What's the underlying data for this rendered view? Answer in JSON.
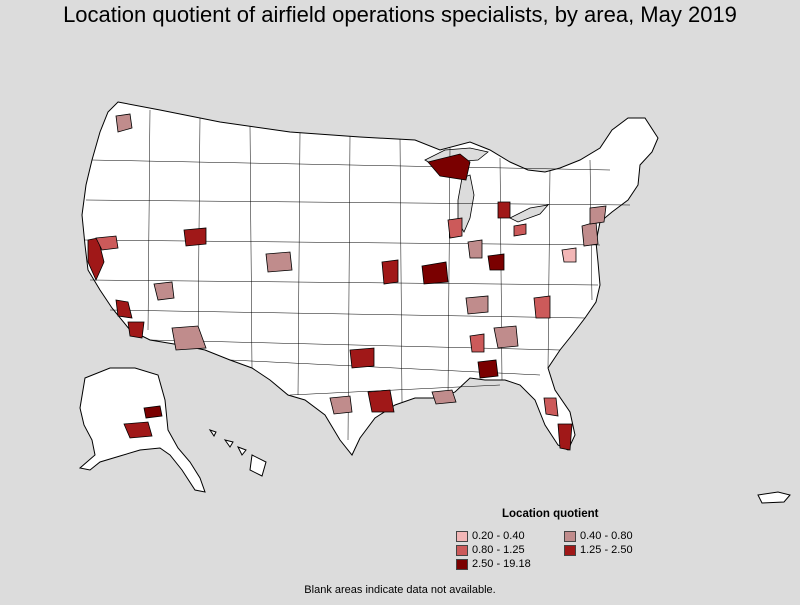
{
  "title": "Location quotient of airfield operations specialists, by area, May 2019",
  "legend": {
    "title": "Location quotient",
    "items": [
      {
        "label": "0.20 - 0.40",
        "color": "#f2b6b6"
      },
      {
        "label": "0.40 - 0.80",
        "color": "#c08c8c"
      },
      {
        "label": "0.80 - 1.25",
        "color": "#cc5a5a"
      },
      {
        "label": "1.25 - 2.50",
        "color": "#a01818"
      },
      {
        "label": "2.50 - 19.18",
        "color": "#7a0000"
      }
    ]
  },
  "footnote": "Blank areas indicate data not available.",
  "colors": {
    "background": "#dcdcdc",
    "land": "#ffffff",
    "border": "#000000"
  },
  "map": {
    "region": "United States (contiguous, Alaska, Hawaii, Puerto Rico)",
    "classes": {
      "c1": "0.20 - 0.40",
      "c2": "0.40 - 0.80",
      "c3": "0.80 - 1.25",
      "c4": "1.25 - 2.50",
      "c5": "2.50 - 19.18"
    }
  }
}
